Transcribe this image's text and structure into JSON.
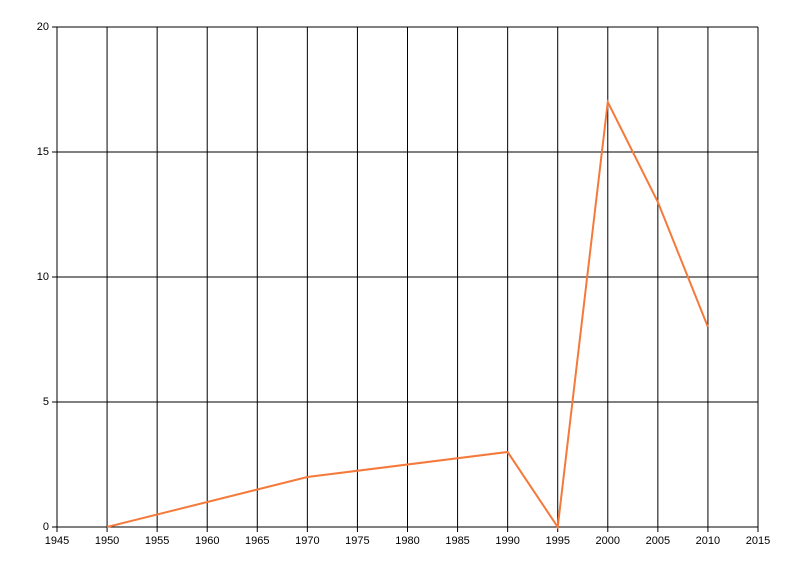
{
  "chart_data": {
    "type": "line",
    "x": [
      1950,
      1970,
      1990,
      1995,
      2000,
      2005,
      2010
    ],
    "series": [
      {
        "color": "#f5793a",
        "values": [
          0,
          2,
          3,
          0,
          17,
          13,
          8
        ]
      }
    ],
    "xlim": [
      1945,
      2015
    ],
    "xticks": [
      1945,
      1950,
      1955,
      1960,
      1965,
      1970,
      1975,
      1980,
      1985,
      1990,
      1995,
      2000,
      2005,
      2010,
      2015
    ],
    "ylim": [
      0,
      20
    ],
    "yticks": [
      0,
      5,
      10,
      15,
      20
    ],
    "grid": true
  }
}
